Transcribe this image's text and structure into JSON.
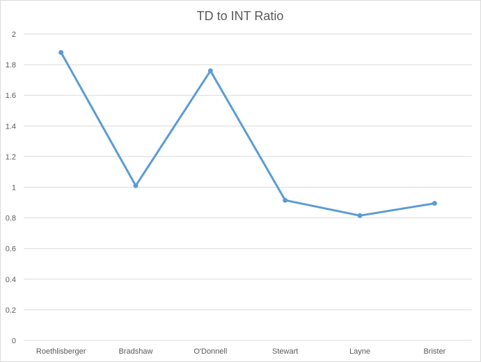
{
  "chart_data": {
    "type": "line",
    "title": "TD to INT Ratio",
    "xlabel": "",
    "ylabel": "",
    "categories": [
      "Roethlisberger",
      "Bradshaw",
      "O'Donnell",
      "Stewart",
      "Layne",
      "Brister"
    ],
    "series": [
      {
        "values": [
          1.88,
          1.01,
          1.76,
          0.915,
          0.815,
          0.895
        ],
        "color": "#5b9bd5"
      }
    ],
    "ylim": [
      0,
      2
    ],
    "yticks": [
      "0",
      "0.2",
      "0.4",
      "0.6",
      "0.8",
      "1",
      "1.2",
      "1.4",
      "1.6",
      "1.8",
      "2"
    ],
    "grid": true,
    "legend": "none",
    "colors": {
      "gridline": "#d9d9d9",
      "text": "#595959"
    }
  }
}
